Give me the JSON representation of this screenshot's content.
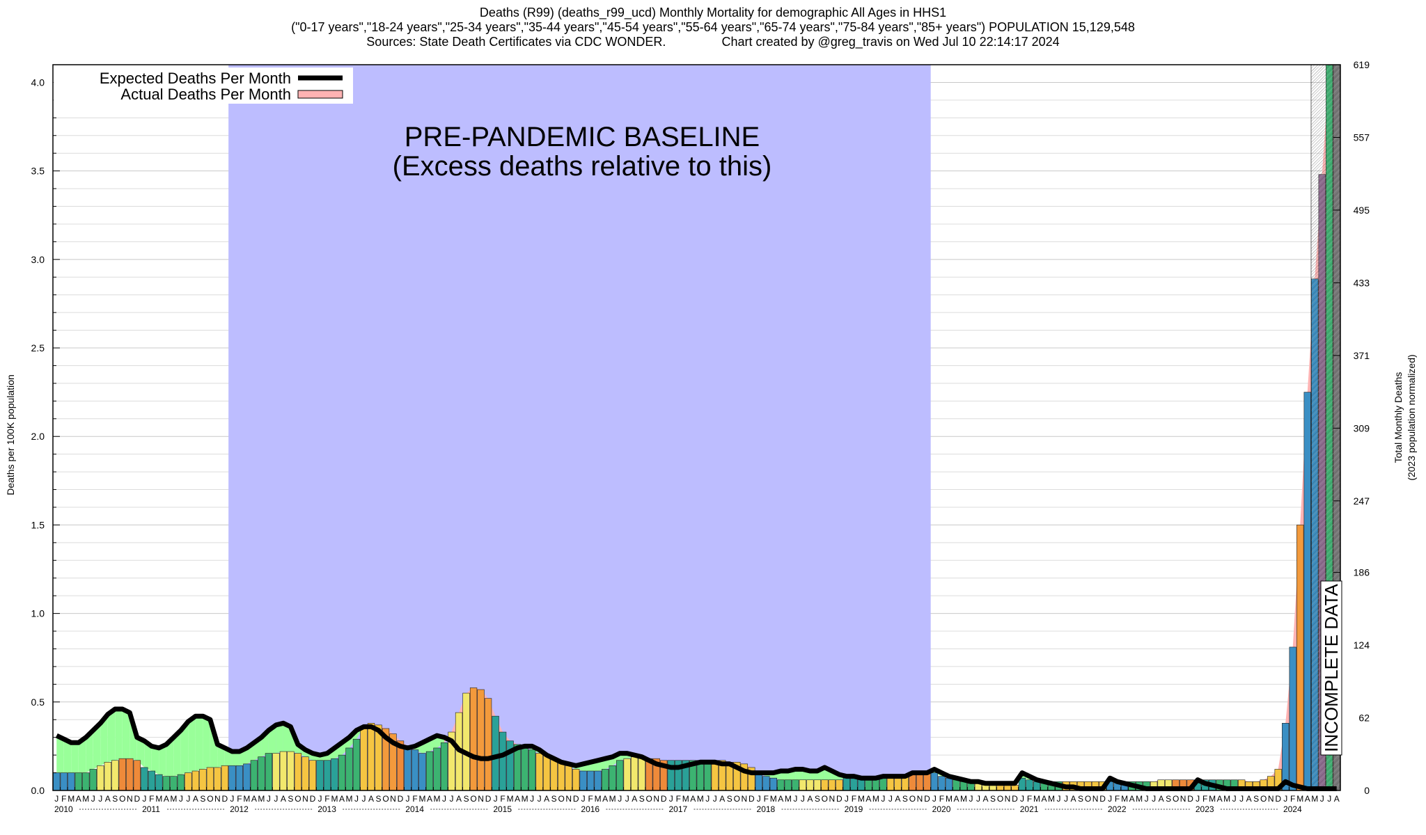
{
  "title_lines": [
    "Deaths (R99) (deaths_r99_ucd) Monthly Mortality for demographic All Ages in HHS1",
    "(\"0-17 years\",\"18-24 years\",\"25-34 years\",\"35-44 years\",\"45-54 years\",\"55-64 years\",\"65-74 years\",\"75-84 years\",\"85+ years\") POPULATION 15,129,548",
    "Sources: State Death Certificates via CDC WONDER.                Chart created by @greg_travis on Wed Jul 10 22:14:17 2024"
  ],
  "legend": {
    "expected_label": "Expected Deaths Per Month",
    "actual_label": "Actual Deaths Per Month"
  },
  "annotations": {
    "baseline_line1": "PRE-PANDEMIC BASELINE",
    "baseline_line2": "(Excess deaths relative to this)",
    "incomplete": "INCOMPLETE DATA"
  },
  "colors": {
    "baseline_shade": "#bdbdff",
    "excess_fill": "#ffb3b3",
    "deficit_fill": "#99ff99",
    "expected_line": "#000000",
    "bar_palette": [
      "#3a8fc4",
      "#2aa198",
      "#3cb371",
      "#f2e86d",
      "#f5c542",
      "#f39a3c",
      "#ee8a3a",
      "#8e6a8f",
      "#777777"
    ]
  },
  "chart_data": {
    "type": "bar",
    "y_left_label": "Deaths per 100K population",
    "y_right_label": "Total Monthly Deaths",
    "y_right_sublabel": "(2023 population normalized)",
    "ylim": [
      0,
      4.1
    ],
    "left_ticks": [
      "0.0",
      "0.5",
      "1.0",
      "1.5",
      "2.0",
      "2.5",
      "3.0",
      "3.5",
      "4.0"
    ],
    "right_ticks": [
      "0",
      "62",
      "124",
      "186",
      "247",
      "309",
      "371",
      "433",
      "495",
      "557",
      "619"
    ],
    "month_letters": [
      "J",
      "F",
      "M",
      "A",
      "M",
      "J",
      "J",
      "A",
      "S",
      "O",
      "N",
      "D"
    ],
    "years": [
      "2010",
      "2011",
      "2012",
      "2013",
      "2014",
      "2015",
      "2016",
      "2017",
      "2018",
      "2019",
      "2020",
      "2021",
      "2022",
      "2023",
      "2024"
    ],
    "last_year_months": 8,
    "baseline_period": [
      "2012-01",
      "2019-12"
    ],
    "incomplete_from": "2024-05",
    "actual": [
      0.1,
      0.1,
      0.1,
      0.1,
      0.1,
      0.12,
      0.14,
      0.16,
      0.17,
      0.18,
      0.18,
      0.17,
      0.13,
      0.11,
      0.09,
      0.08,
      0.08,
      0.09,
      0.1,
      0.11,
      0.12,
      0.13,
      0.13,
      0.14,
      0.14,
      0.14,
      0.15,
      0.17,
      0.19,
      0.21,
      0.21,
      0.22,
      0.22,
      0.21,
      0.19,
      0.17,
      0.17,
      0.17,
      0.18,
      0.2,
      0.24,
      0.29,
      0.36,
      0.38,
      0.37,
      0.35,
      0.32,
      0.28,
      0.25,
      0.23,
      0.21,
      0.22,
      0.24,
      0.27,
      0.33,
      0.44,
      0.55,
      0.58,
      0.57,
      0.52,
      0.42,
      0.33,
      0.28,
      0.26,
      0.25,
      0.23,
      0.21,
      0.2,
      0.18,
      0.16,
      0.14,
      0.12,
      0.11,
      0.11,
      0.11,
      0.12,
      0.14,
      0.17,
      0.18,
      0.19,
      0.19,
      0.18,
      0.18,
      0.17,
      0.17,
      0.17,
      0.17,
      0.17,
      0.17,
      0.17,
      0.17,
      0.17,
      0.16,
      0.16,
      0.15,
      0.13,
      0.1,
      0.08,
      0.07,
      0.06,
      0.06,
      0.06,
      0.06,
      0.06,
      0.06,
      0.06,
      0.06,
      0.06,
      0.07,
      0.07,
      0.07,
      0.07,
      0.07,
      0.07,
      0.07,
      0.08,
      0.09,
      0.1,
      0.1,
      0.1,
      0.1,
      0.08,
      0.07,
      0.06,
      0.05,
      0.04,
      0.04,
      0.03,
      0.03,
      0.03,
      0.03,
      0.03,
      0.07,
      0.06,
      0.05,
      0.05,
      0.05,
      0.05,
      0.05,
      0.05,
      0.05,
      0.05,
      0.05,
      0.05,
      0.05,
      0.05,
      0.05,
      0.05,
      0.05,
      0.05,
      0.05,
      0.06,
      0.06,
      0.06,
      0.06,
      0.06,
      0.06,
      0.06,
      0.06,
      0.06,
      0.06,
      0.06,
      0.06,
      0.05,
      0.05,
      0.06,
      0.08,
      0.12,
      0.38,
      0.81,
      1.5,
      2.25,
      2.89,
      3.48,
      4.1,
      4.1
    ],
    "expected": [
      0.31,
      0.29,
      0.27,
      0.27,
      0.3,
      0.34,
      0.38,
      0.43,
      0.46,
      0.46,
      0.44,
      0.3,
      0.28,
      0.25,
      0.24,
      0.26,
      0.3,
      0.34,
      0.39,
      0.42,
      0.42,
      0.4,
      0.26,
      0.24,
      0.22,
      0.22,
      0.24,
      0.27,
      0.3,
      0.34,
      0.37,
      0.38,
      0.36,
      0.26,
      0.23,
      0.21,
      0.2,
      0.21,
      0.24,
      0.27,
      0.3,
      0.34,
      0.36,
      0.36,
      0.34,
      0.3,
      0.27,
      0.25,
      0.24,
      0.25,
      0.27,
      0.29,
      0.31,
      0.3,
      0.28,
      0.23,
      0.21,
      0.19,
      0.18,
      0.18,
      0.19,
      0.2,
      0.22,
      0.24,
      0.25,
      0.25,
      0.23,
      0.2,
      0.18,
      0.16,
      0.15,
      0.14,
      0.15,
      0.16,
      0.17,
      0.18,
      0.19,
      0.21,
      0.21,
      0.2,
      0.19,
      0.17,
      0.15,
      0.14,
      0.13,
      0.13,
      0.14,
      0.15,
      0.16,
      0.16,
      0.16,
      0.15,
      0.15,
      0.13,
      0.11,
      0.1,
      0.1,
      0.1,
      0.1,
      0.11,
      0.11,
      0.12,
      0.12,
      0.11,
      0.11,
      0.13,
      0.11,
      0.09,
      0.08,
      0.08,
      0.07,
      0.07,
      0.07,
      0.08,
      0.08,
      0.08,
      0.08,
      0.1,
      0.1,
      0.1,
      0.12,
      0.1,
      0.08,
      0.07,
      0.06,
      0.05,
      0.05,
      0.04,
      0.04,
      0.04,
      0.04,
      0.04,
      0.1,
      0.08,
      0.06,
      0.05,
      0.04,
      0.03,
      0.02,
      0.02,
      0.01,
      0.01,
      0.01,
      0.01,
      0.07,
      0.05,
      0.04,
      0.03,
      0.02,
      0.01,
      0.01,
      0.01,
      0.01,
      0.01,
      0.01,
      0.01,
      0.06,
      0.04,
      0.03,
      0.02,
      0.01,
      0.01,
      0.01,
      0.01,
      0.01,
      0.01,
      0.01,
      0.01,
      0.05,
      0.03,
      0.02,
      0.01,
      0.01,
      0.01,
      0.01,
      0.01
    ]
  }
}
